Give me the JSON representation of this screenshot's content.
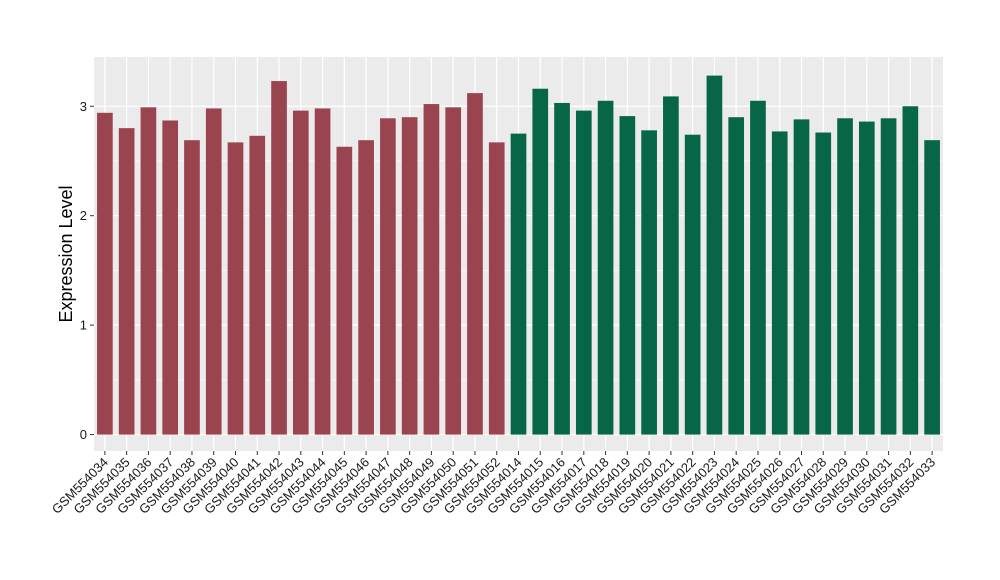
{
  "chart_data": {
    "type": "bar",
    "title": "",
    "xlabel": "",
    "ylabel": "Expression Level",
    "ylim": [
      -0.15,
      3.45
    ],
    "yticks": [
      0,
      1,
      2,
      3
    ],
    "grid": true,
    "legend": "none",
    "panel_color": "#ebebeb",
    "gridline_color": "#ffffff",
    "categories": [
      "GSM554034",
      "GSM554035",
      "GSM554036",
      "GSM554037",
      "GSM554038",
      "GSM554039",
      "GSM554040",
      "GSM554041",
      "GSM554042",
      "GSM554043",
      "GSM554044",
      "GSM554045",
      "GSM554046",
      "GSM554047",
      "GSM554048",
      "GSM554049",
      "GSM554050",
      "GSM554051",
      "GSM554052",
      "GSM554014",
      "GSM554015",
      "GSM554016",
      "GSM554017",
      "GSM554018",
      "GSM554019",
      "GSM554020",
      "GSM554021",
      "GSM554022",
      "GSM554023",
      "GSM554024",
      "GSM554025",
      "GSM554026",
      "GSM554027",
      "GSM554028",
      "GSM554029",
      "GSM554030",
      "GSM554031",
      "GSM554032",
      "GSM554033"
    ],
    "values": [
      2.94,
      2.8,
      2.99,
      2.87,
      2.69,
      2.98,
      2.67,
      2.73,
      3.23,
      2.96,
      2.98,
      2.63,
      2.69,
      2.89,
      2.9,
      3.02,
      2.99,
      3.12,
      2.67,
      2.75,
      3.16,
      3.03,
      2.96,
      3.05,
      2.91,
      2.78,
      3.09,
      2.74,
      3.28,
      2.9,
      3.05,
      2.77,
      2.88,
      2.76,
      2.89,
      2.86,
      2.89,
      3.0,
      2.69
    ],
    "bar_colors": [
      "#9a4450",
      "#9a4450",
      "#9a4450",
      "#9a4450",
      "#9a4450",
      "#9a4450",
      "#9a4450",
      "#9a4450",
      "#9a4450",
      "#9a4450",
      "#9a4450",
      "#9a4450",
      "#9a4450",
      "#9a4450",
      "#9a4450",
      "#9a4450",
      "#9a4450",
      "#9a4450",
      "#9a4450",
      "#066647",
      "#066647",
      "#066647",
      "#066647",
      "#066647",
      "#066647",
      "#066647",
      "#066647",
      "#066647",
      "#066647",
      "#066647",
      "#066647",
      "#066647",
      "#066647",
      "#066647",
      "#066647",
      "#066647",
      "#066647",
      "#066647",
      "#066647"
    ]
  }
}
